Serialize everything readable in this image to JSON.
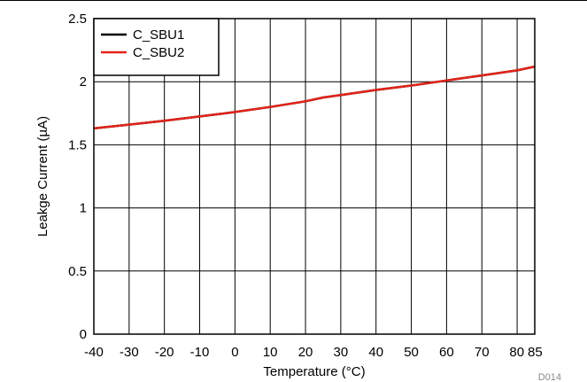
{
  "figure_id": "D014",
  "chart_data": {
    "type": "line",
    "xlabel": "Temperature (°C)",
    "ylabel": "Leakge Current (µA)",
    "xlim": [
      -40,
      85
    ],
    "ylim": [
      0,
      2.5
    ],
    "x_ticks": [
      -40,
      -30,
      -20,
      -10,
      0,
      10,
      20,
      30,
      40,
      50,
      60,
      70,
      80,
      85
    ],
    "x_tick_labels": [
      "-40",
      "-30",
      "-20",
      "-10",
      "0",
      "10",
      "20",
      "30",
      "40",
      "50",
      "60",
      "70",
      "80",
      "85"
    ],
    "y_ticks": [
      0,
      0.5,
      1,
      1.5,
      2,
      2.5
    ],
    "y_tick_labels": [
      "0",
      "0.5",
      "1",
      "1.5",
      "2",
      "2.5"
    ],
    "grid": true,
    "legend_position": "top-left",
    "series": [
      {
        "name": "C_SBU1",
        "color": "#000000",
        "x": [
          -40,
          -30,
          -20,
          -10,
          0,
          10,
          20,
          25,
          30,
          40,
          50,
          60,
          70,
          80,
          85
        ],
        "y": [
          1.63,
          1.66,
          1.69,
          1.725,
          1.76,
          1.8,
          1.845,
          1.875,
          1.895,
          1.935,
          1.97,
          2.01,
          2.05,
          2.09,
          2.12
        ]
      },
      {
        "name": "C_SBU2",
        "color": "#e2231a",
        "x": [
          -40,
          -30,
          -20,
          -10,
          0,
          10,
          20,
          25,
          30,
          40,
          50,
          60,
          70,
          80,
          85
        ],
        "y": [
          1.63,
          1.66,
          1.69,
          1.725,
          1.76,
          1.8,
          1.845,
          1.875,
          1.895,
          1.935,
          1.97,
          2.01,
          2.05,
          2.09,
          2.12
        ]
      }
    ]
  }
}
